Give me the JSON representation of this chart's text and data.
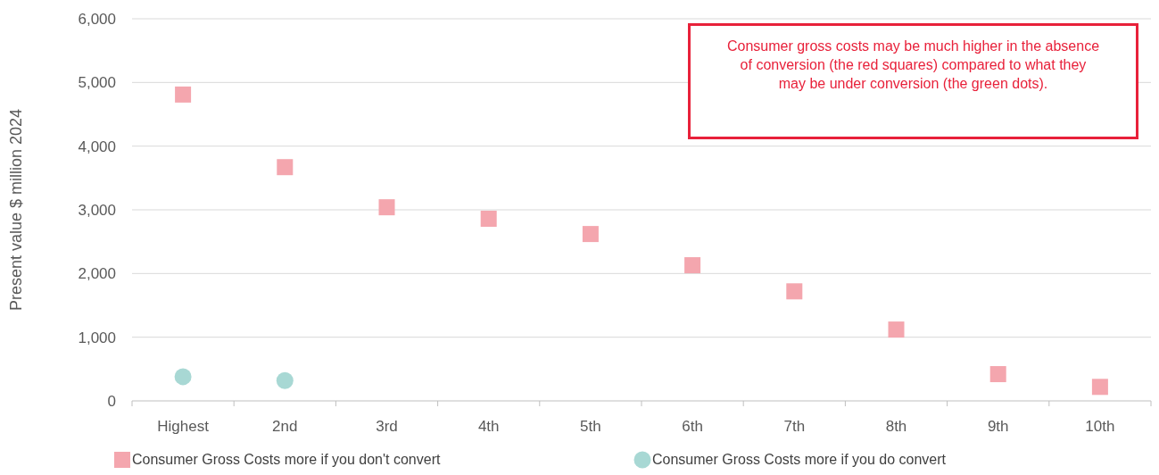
{
  "chart_data": {
    "type": "scatter",
    "ylabel": "Present value $ million 2024",
    "categories": [
      "Highest",
      "2nd",
      "3rd",
      "4th",
      "5th",
      "6th",
      "7th",
      "8th",
      "9th",
      "10th"
    ],
    "series": [
      {
        "name": "Consumer Gross Costs more if you don't convert",
        "color": "#f4a6ae",
        "marker": "square",
        "values": [
          4810,
          3670,
          3040,
          2860,
          2620,
          2130,
          1720,
          1120,
          420,
          220
        ]
      },
      {
        "name": "Consumer Gross Costs more if you do convert",
        "color": "#a8d8d4",
        "marker": "circle",
        "values": [
          380,
          320,
          null,
          null,
          null,
          null,
          null,
          null,
          null,
          null
        ]
      }
    ],
    "ylim": [
      0,
      6000
    ],
    "yticks": [
      {
        "value": 0,
        "label": "0"
      },
      {
        "value": 1000,
        "label": "1,000"
      },
      {
        "value": 2000,
        "label": "2,000"
      },
      {
        "value": 3000,
        "label": "3,000"
      },
      {
        "value": 4000,
        "label": "4,000"
      },
      {
        "value": 5000,
        "label": "5,000"
      },
      {
        "value": 6000,
        "label": "6,000"
      }
    ],
    "grid": "y",
    "legend": "bottom",
    "annotations": [
      "Consumer gross costs may be much higher in the absence of conversion (the red squares) compared to what they may be under conversion (the green dots)."
    ]
  }
}
